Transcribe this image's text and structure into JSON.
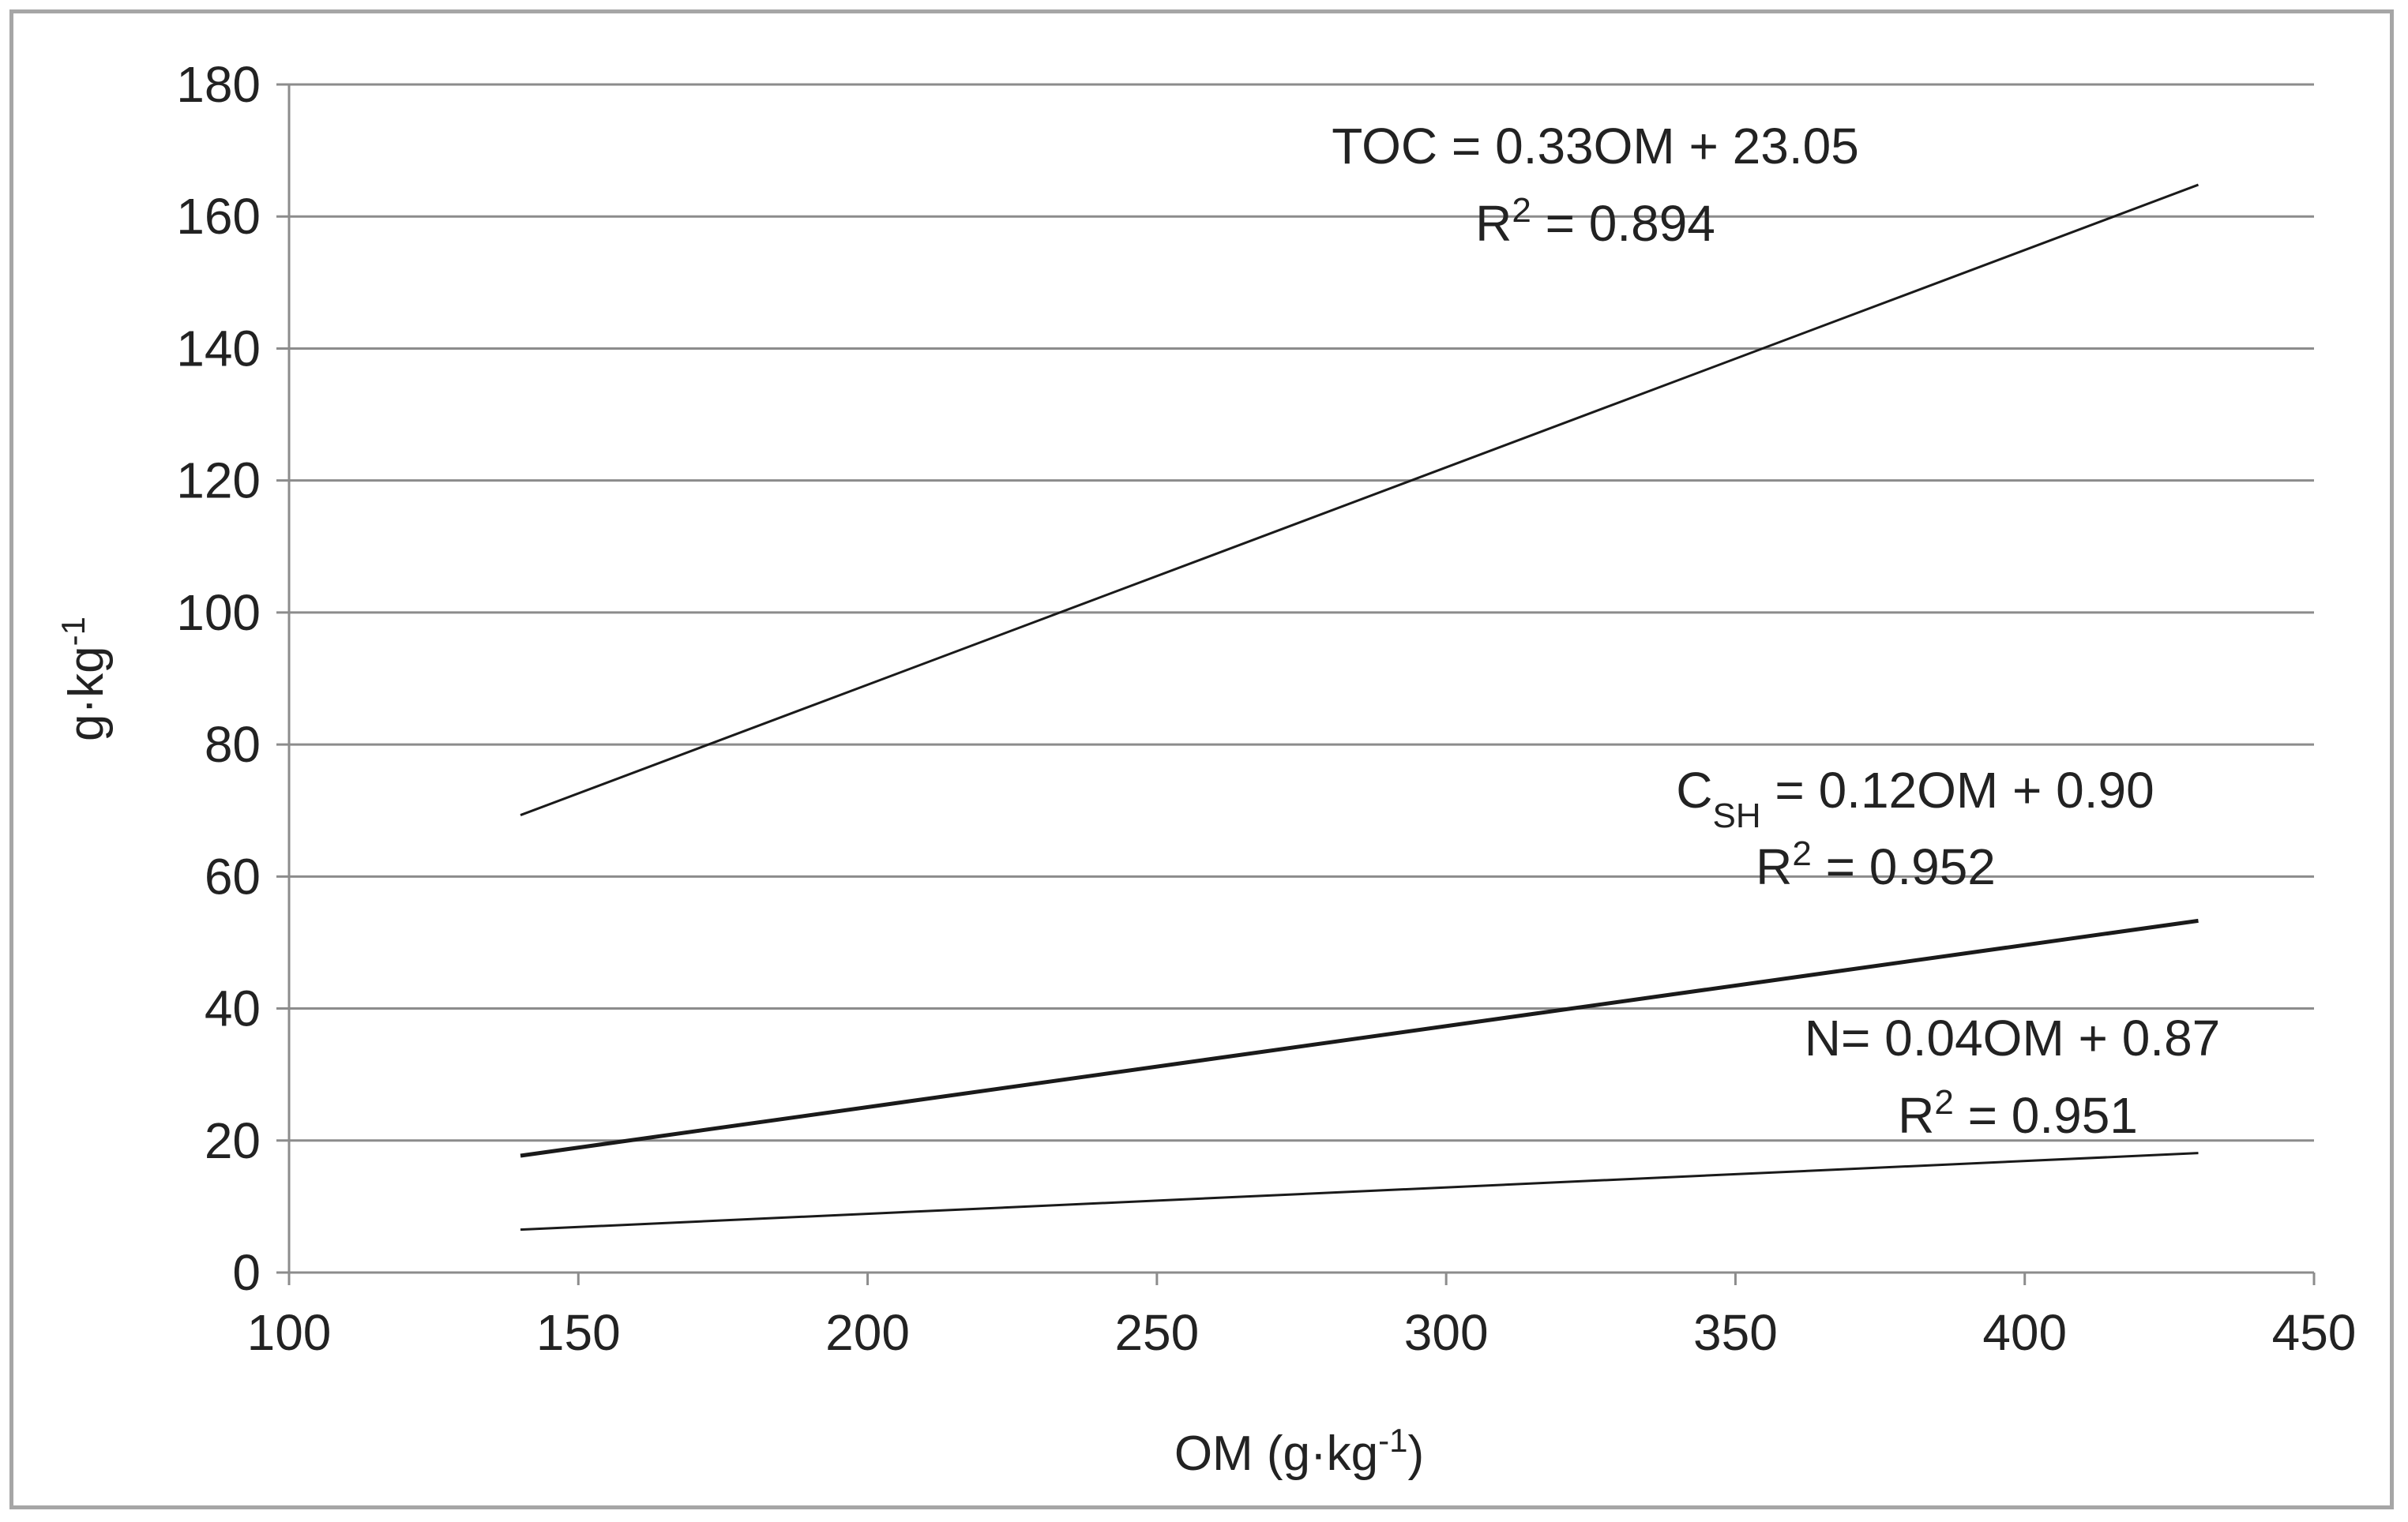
{
  "chart_data": {
    "type": "line",
    "title": "",
    "xlabel": "OM (g·kg",
    "xlabel_sup": "-1",
    "xlabel_end": ")",
    "ylabel": "g·kg",
    "ylabel_sup": "-1",
    "xlim": [
      100,
      450
    ],
    "ylim": [
      0,
      180
    ],
    "x_ticks": [
      100,
      150,
      200,
      250,
      300,
      350,
      400,
      450
    ],
    "y_ticks": [
      0,
      20,
      40,
      60,
      80,
      100,
      120,
      140,
      160,
      180
    ],
    "grid": true,
    "legend": "none",
    "series": [
      {
        "name": "TOC",
        "x": [
          140,
          430
        ],
        "y": [
          69.3,
          164.8
        ],
        "color": "#1a1a1a",
        "equation": "TOC = 0.33OM + 23.05",
        "r2_prefix": "R",
        "r2_sup": "2",
        "r2_value": " = 0.894"
      },
      {
        "name": "CSH",
        "x": [
          140,
          430
        ],
        "y": [
          17.7,
          53.3
        ],
        "color": "#1a1a1a",
        "eq_main": "C",
        "eq_sub": "SH",
        "eq_rest": " = 0.12OM + 0.90",
        "r2_prefix": "R",
        "r2_sup": "2",
        "r2_value": " = 0.952"
      },
      {
        "name": "N",
        "x": [
          140,
          430
        ],
        "y": [
          6.5,
          18.1
        ],
        "color": "#1a1a1a",
        "equation": "N= 0.04OM + 0.87",
        "r2_prefix": "R",
        "r2_sup": "2",
        "r2_value": " = 0.951"
      }
    ]
  }
}
